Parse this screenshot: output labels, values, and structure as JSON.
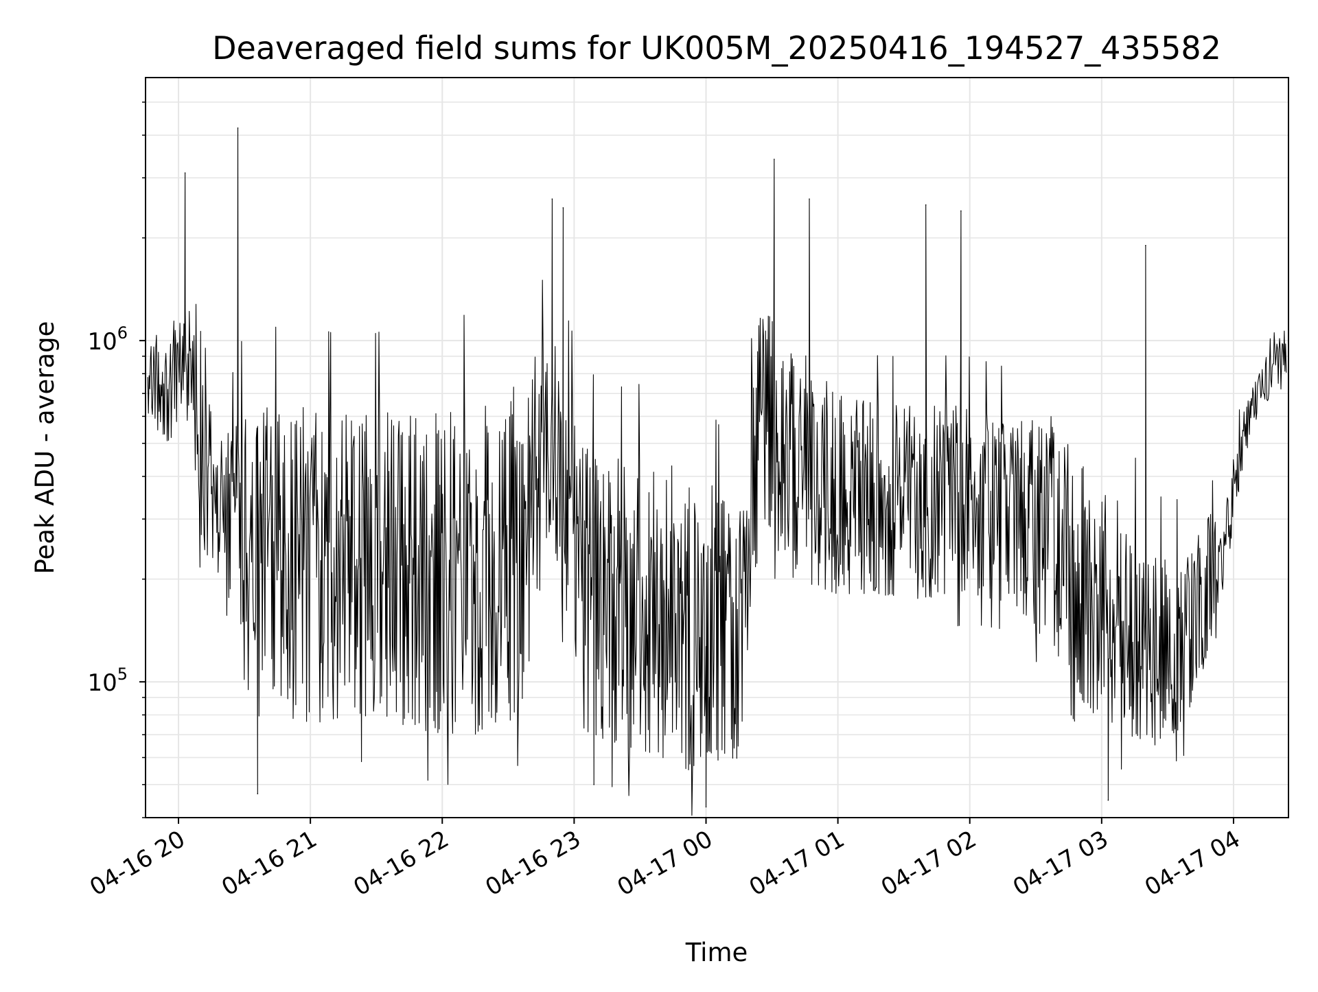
{
  "chart_data": {
    "type": "line",
    "title": "Deaveraged field sums for UK005M_20250416_194527_435582",
    "xlabel": "Time",
    "ylabel": "Peak ADU - average",
    "yscale": "log",
    "grid": true,
    "x_ticks": [
      "04-16 20",
      "04-16 21",
      "04-16 22",
      "04-16 23",
      "04-17 00",
      "04-17 01",
      "04-17 02",
      "04-17 03",
      "04-17 04"
    ],
    "y_ticks": [
      {
        "base": "10",
        "exponent": "5",
        "value": 100000
      },
      {
        "base": "10",
        "exponent": "6",
        "value": 1000000
      }
    ],
    "xlim": [
      "2025-04-16 19:45",
      "2025-04-17 04:25"
    ],
    "ylim": [
      40000,
      5900000
    ],
    "line_color": "#000000",
    "series": [
      {
        "envelope": {
          "x": [
            "2025-04-16 19:46",
            "2025-04-16 19:55",
            "2025-04-16 20:05",
            "2025-04-16 20:10",
            "2025-04-16 20:20",
            "2025-04-16 20:30",
            "2025-04-16 20:45",
            "2025-04-16 21:00",
            "2025-04-16 21:20",
            "2025-04-16 21:40",
            "2025-04-16 22:00",
            "2025-04-16 22:20",
            "2025-04-16 22:35",
            "2025-04-16 22:50",
            "2025-04-16 23:05",
            "2025-04-16 23:20",
            "2025-04-16 23:40",
            "2025-04-17 00:00",
            "2025-04-17 00:15",
            "2025-04-17 00:25",
            "2025-04-17 00:40",
            "2025-04-17 01:00",
            "2025-04-17 01:20",
            "2025-04-17 01:40",
            "2025-04-17 02:00",
            "2025-04-17 02:20",
            "2025-04-17 02:40",
            "2025-04-17 02:55",
            "2025-04-17 03:10",
            "2025-04-17 03:25",
            "2025-04-17 03:40",
            "2025-04-17 03:55",
            "2025-04-17 04:05",
            "2025-04-17 04:15",
            "2025-04-17 04:24"
          ],
          "upper": [
            1000000,
            1200000,
            1300000,
            800000,
            500000,
            700000,
            650000,
            650000,
            600000,
            650000,
            650000,
            700000,
            750000,
            1100000,
            500000,
            450000,
            450000,
            400000,
            300000,
            1300000,
            1000000,
            700000,
            650000,
            650000,
            650000,
            600000,
            600000,
            400000,
            350000,
            250000,
            250000,
            350000,
            650000,
            900000,
            1100000
          ],
          "lower": [
            600000,
            500000,
            500000,
            250000,
            200000,
            130000,
            80000,
            75000,
            80000,
            75000,
            70000,
            70000,
            80000,
            250000,
            70000,
            65000,
            55000,
            55000,
            60000,
            300000,
            200000,
            180000,
            180000,
            170000,
            180000,
            170000,
            120000,
            80000,
            70000,
            65000,
            75000,
            180000,
            450000,
            650000,
            800000
          ]
        },
        "peaks": [
          {
            "x": "2025-04-16 20:03",
            "y": 3100000
          },
          {
            "x": "2025-04-16 20:27",
            "y": 4200000
          },
          {
            "x": "2025-04-16 22:50",
            "y": 2600000
          },
          {
            "x": "2025-04-16 22:55",
            "y": 2450000
          },
          {
            "x": "2025-04-17 00:31",
            "y": 3400000
          },
          {
            "x": "2025-04-17 00:47",
            "y": 2600000
          },
          {
            "x": "2025-04-17 01:40",
            "y": 2500000
          },
          {
            "x": "2025-04-17 01:56",
            "y": 2400000
          },
          {
            "x": "2025-04-17 03:20",
            "y": 1900000
          },
          {
            "x": "2025-04-16 20:36",
            "y": 47000
          },
          {
            "x": "2025-04-16 23:09",
            "y": 50000
          },
          {
            "x": "2025-04-17 00:00",
            "y": 43000
          },
          {
            "x": "2025-04-17 03:03",
            "y": 45000
          }
        ]
      }
    ]
  }
}
